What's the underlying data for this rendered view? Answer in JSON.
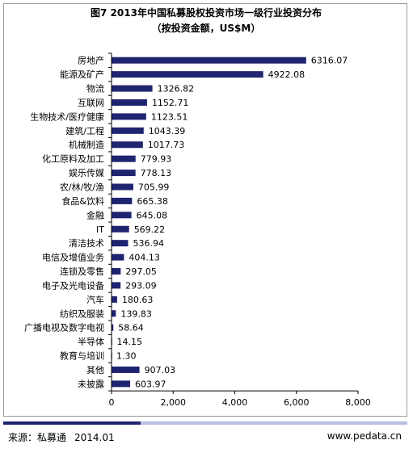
{
  "chart_data": {
    "type": "bar",
    "orientation": "horizontal",
    "title": "图7 2013年中国私募股权投资市场一级行业投资分布",
    "subtitle": "（按投资金额，US$M）",
    "categories": [
      "房地产",
      "能源及矿产",
      "物流",
      "互联网",
      "生物技术/医疗健康",
      "建筑/工程",
      "机械制造",
      "化工原料及加工",
      "娱乐传媒",
      "农/林/牧/渔",
      "食品&饮料",
      "金融",
      "IT",
      "清洁技术",
      "电信及增值业务",
      "连锁及零售",
      "电子及光电设备",
      "汽车",
      "纺织及服装",
      "广播电视及数字电视",
      "半导体",
      "教育与培训",
      "其他",
      "未披露"
    ],
    "values": [
      6316.07,
      4922.08,
      1326.82,
      1152.71,
      1123.51,
      1043.39,
      1017.73,
      779.93,
      778.13,
      705.99,
      665.38,
      645.08,
      569.22,
      536.94,
      404.13,
      297.05,
      293.09,
      180.63,
      139.83,
      58.64,
      14.15,
      1.3,
      907.03,
      603.97
    ],
    "value_labels": [
      "6316.07",
      "4922.08",
      "1326.82",
      "1152.71",
      "1123.51",
      "1043.39",
      "1017.73",
      "779.93",
      "778.13",
      "705.99",
      "665.38",
      "645.08",
      "569.22",
      "536.94",
      "404.13",
      "297.05",
      "293.09",
      "180.63",
      "139.83",
      "58.64",
      "14.15",
      "1.30",
      "907.03",
      "603.97"
    ],
    "xlim": [
      0,
      8000
    ],
    "xticks": [
      0,
      2000,
      4000,
      6000,
      8000
    ],
    "xtick_labels": [
      "0",
      "2,000",
      "4,000",
      "6,000",
      "8,000"
    ],
    "grid": false,
    "bar_color": "#1f2470"
  },
  "footer": {
    "source_label": "来源：私募通",
    "date": "2014.01",
    "website": "www.pedata.cn"
  }
}
